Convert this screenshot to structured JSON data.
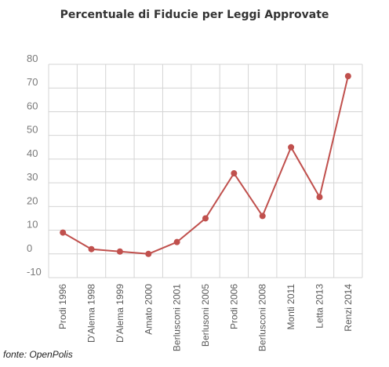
{
  "source_label": "fonte: OpenPolis",
  "colors": {
    "line": "#c0504d",
    "grid": "#d4d4d4"
  },
  "chart_data": {
    "type": "line",
    "title": "Percentuale di Fiducie per Leggi Approvate",
    "xlabel": "",
    "ylabel": "",
    "ylim": [
      -10,
      80
    ],
    "yticks": [
      "80",
      "70",
      "60",
      "50",
      "40",
      "30",
      "20",
      "10",
      "0",
      "-10"
    ],
    "grid": true,
    "categories": [
      "Prodi 1996",
      "D'Alema 1998",
      "D'Alema 1999",
      "Amato 2000",
      "Berlusconi 2001",
      "Berlusoni 2005",
      "Prodi 2006",
      "Berlusconi 2008",
      "Monti 2011",
      "Letta 2013",
      "Renzi 2014"
    ],
    "series": [
      {
        "values": [
          9,
          2,
          1,
          0,
          5,
          15,
          34,
          16,
          45,
          24,
          75
        ]
      }
    ]
  }
}
